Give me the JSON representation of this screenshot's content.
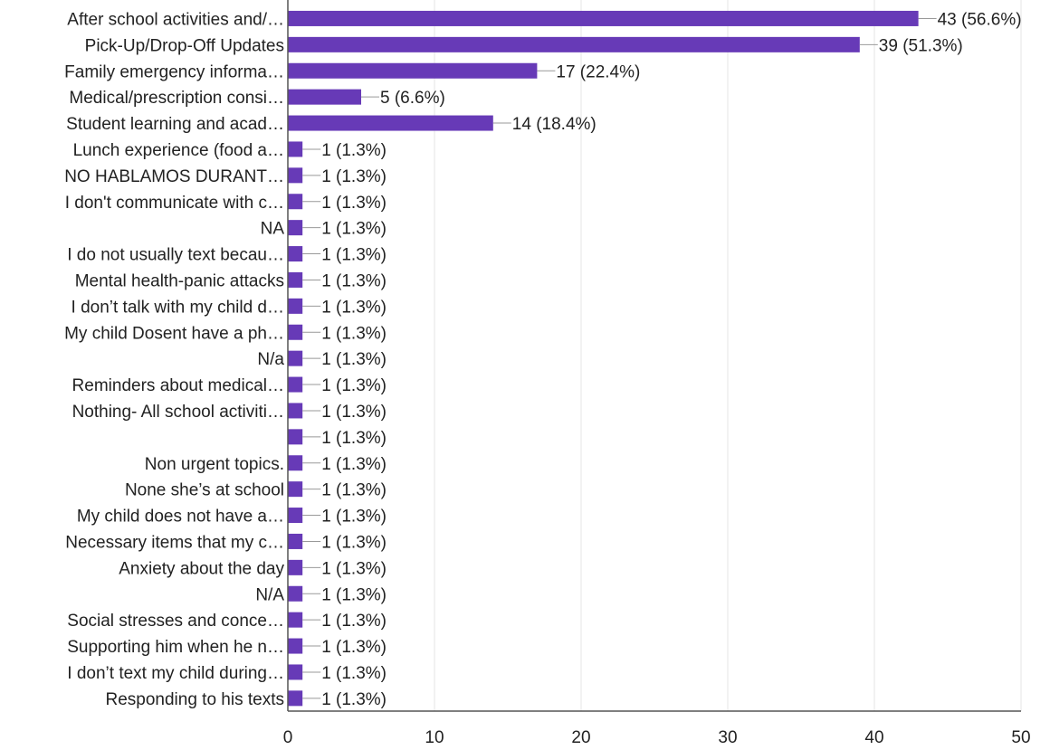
{
  "chart_data": {
    "type": "bar",
    "orientation": "horizontal",
    "bar_color": "#673ab7",
    "xlim": [
      0,
      50
    ],
    "xticks": [
      0,
      10,
      20,
      30,
      40,
      50
    ],
    "grid": true,
    "categories": [
      "After school activities and/…",
      "Pick-Up/Drop-Off Updates",
      "Family emergency informa…",
      "Medical/prescription consi…",
      "Student learning and acad…",
      "Lunch experience (food a…",
      "NO HABLAMOS DURANT…",
      "I don't communicate with c…",
      "NA",
      "I do not usually text becau…",
      "Mental health-panic attacks",
      "I don’t talk with my child d…",
      "My child Dosent have a ph…",
      "N/a",
      "Reminders about medical…",
      "Nothing- All school activiti…",
      "",
      "Non urgent topics.",
      "None she’s at school",
      "My child does not have a…",
      "Necessary items that my c…",
      "Anxiety about the day",
      "N/A",
      "Social stresses and conce…",
      "Supporting him when he n…",
      "I don’t text my child during…",
      "Responding to his texts"
    ],
    "values": [
      43,
      39,
      17,
      5,
      14,
      1,
      1,
      1,
      1,
      1,
      1,
      1,
      1,
      1,
      1,
      1,
      1,
      1,
      1,
      1,
      1,
      1,
      1,
      1,
      1,
      1,
      1
    ],
    "value_labels": [
      "43 (56.6%)",
      "39 (51.3%)",
      "17 (22.4%)",
      "5 (6.6%)",
      "14 (18.4%)",
      "1 (1.3%)",
      "1 (1.3%)",
      "1 (1.3%)",
      "1 (1.3%)",
      "1 (1.3%)",
      "1 (1.3%)",
      "1 (1.3%)",
      "1 (1.3%)",
      "1 (1.3%)",
      "1 (1.3%)",
      "1 (1.3%)",
      "1 (1.3%)",
      "1 (1.3%)",
      "1 (1.3%)",
      "1 (1.3%)",
      "1 (1.3%)",
      "1 (1.3%)",
      "1 (1.3%)",
      "1 (1.3%)",
      "1 (1.3%)",
      "1 (1.3%)",
      "1 (1.3%)"
    ]
  }
}
